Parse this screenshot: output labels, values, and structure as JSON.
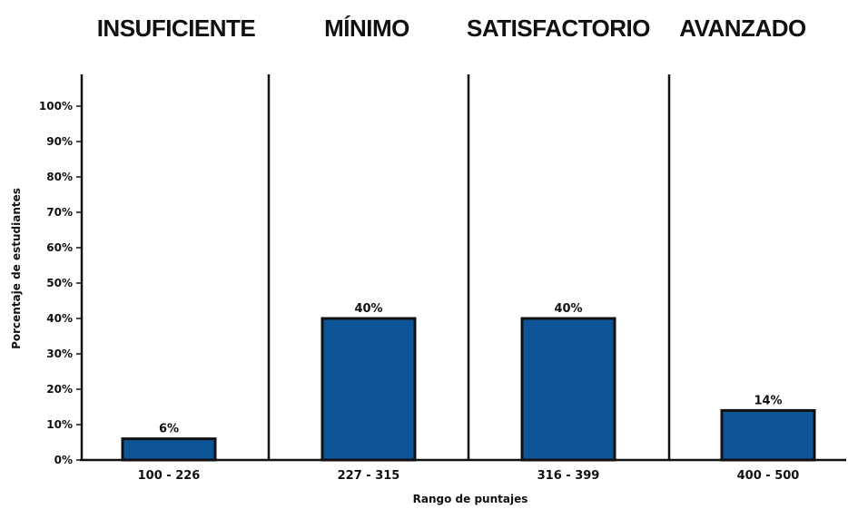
{
  "chart_data": {
    "type": "bar",
    "levels": [
      "INSUFICIENTE",
      "MÍNIMO",
      "SATISFACTORIO",
      "AVANZADO"
    ],
    "categories": [
      "100 - 226",
      "227 - 315",
      "316 - 399",
      "400 - 500"
    ],
    "values": [
      6,
      40,
      40,
      14
    ],
    "data_labels": [
      "6%",
      "40%",
      "40%",
      "14%"
    ],
    "yticks": [
      "0%",
      "10%",
      "20%",
      "30%",
      "40%",
      "50%",
      "60%",
      "70%",
      "80%",
      "90%",
      "100%"
    ],
    "ylim": [
      0,
      100
    ],
    "xlabel": "Rango de puntajes",
    "ylabel": "Porcentaje de estudiantes",
    "bar_color": "#0d5499",
    "bar_edge_color": "#111111",
    "grid": false
  }
}
